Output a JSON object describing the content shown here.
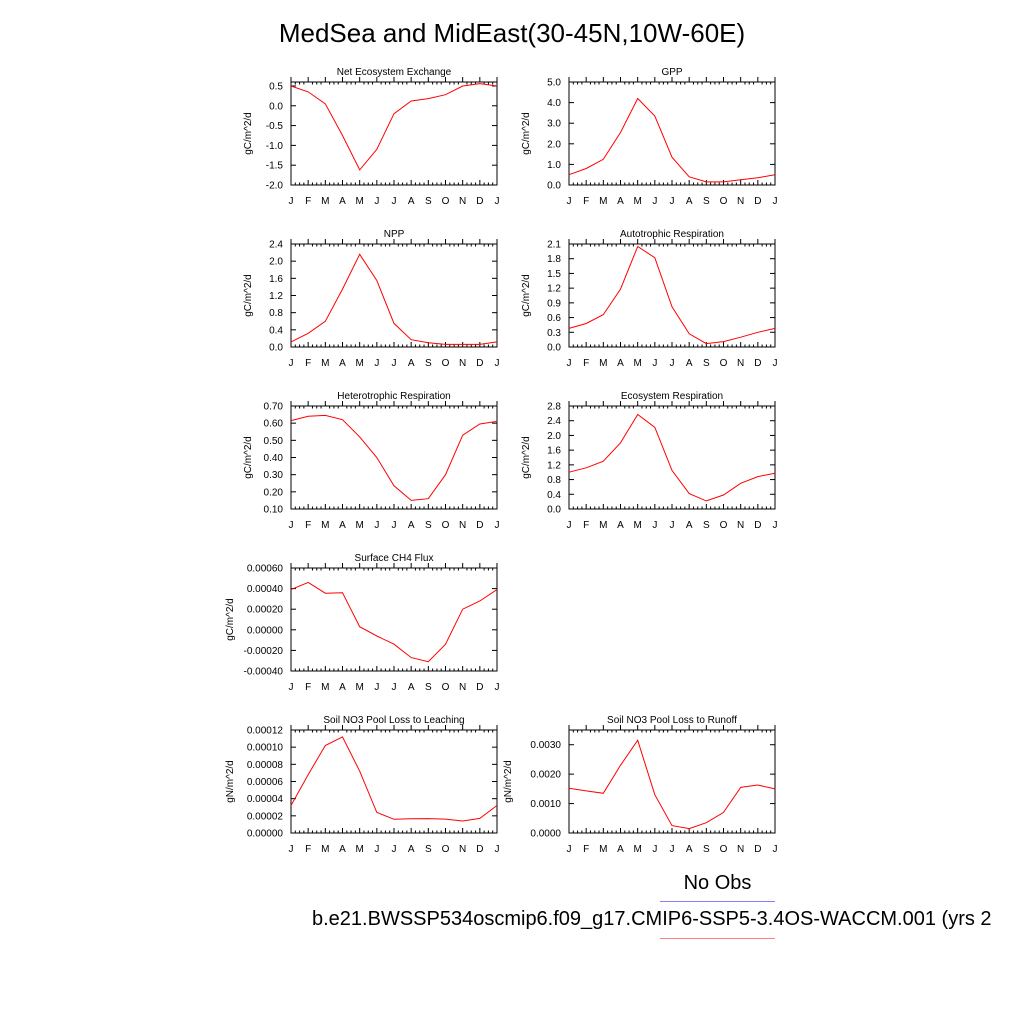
{
  "page": {
    "title": "MedSea and MidEast(30-45N,10W-60E)"
  },
  "legend": {
    "obs_label": "No Obs",
    "case_label": "b.e21.BWSSP534oscmip6.f09_g17.CMIP6-SSP5-3.4OS-WACCM.001 (yrs 2",
    "obs_color": "#8080ff",
    "model_color": "#ff8080"
  },
  "chart_data": [
    {
      "type": "line",
      "title": "Net Ecosystem Exchange",
      "ylabel": "gC/m^2/d",
      "categories": [
        "J",
        "F",
        "M",
        "A",
        "M",
        "J",
        "J",
        "A",
        "S",
        "O",
        "N",
        "D",
        "J"
      ],
      "ylim": [
        -2.0,
        0.6
      ],
      "yticks": [
        "0.5",
        "0.0",
        "-0.5",
        "-1.0",
        "-1.5",
        "-2.0"
      ],
      "ytick_values": [
        0.5,
        0.0,
        -0.5,
        -1.0,
        -1.5,
        -2.0
      ],
      "series": [
        {
          "color": "#ff0000",
          "values": [
            0.5,
            0.35,
            0.05,
            -0.75,
            -1.62,
            -1.1,
            -0.2,
            0.12,
            0.18,
            0.28,
            0.5,
            0.56,
            0.5
          ]
        }
      ]
    },
    {
      "type": "line",
      "title": "GPP",
      "ylabel": "gC/m^2/d",
      "categories": [
        "J",
        "F",
        "M",
        "A",
        "M",
        "J",
        "J",
        "A",
        "S",
        "O",
        "N",
        "D",
        "J"
      ],
      "ylim": [
        0.0,
        5.0
      ],
      "yticks": [
        "5.0",
        "4.0",
        "3.0",
        "2.0",
        "1.0",
        "0.0"
      ],
      "ytick_values": [
        5.0,
        4.0,
        3.0,
        2.0,
        1.0,
        0.0
      ],
      "series": [
        {
          "color": "#ff0000",
          "values": [
            0.5,
            0.8,
            1.25,
            2.55,
            4.2,
            3.35,
            1.35,
            0.4,
            0.15,
            0.15,
            0.25,
            0.35,
            0.5
          ]
        }
      ]
    },
    {
      "type": "line",
      "title": "NPP",
      "ylabel": "gC/m^2/d",
      "categories": [
        "J",
        "F",
        "M",
        "A",
        "M",
        "J",
        "J",
        "A",
        "S",
        "O",
        "N",
        "D",
        "J"
      ],
      "ylim": [
        0.0,
        2.4
      ],
      "yticks": [
        "2.4",
        "2.0",
        "1.6",
        "1.2",
        "0.8",
        "0.4",
        "0.0"
      ],
      "ytick_values": [
        2.4,
        2.0,
        1.6,
        1.2,
        0.8,
        0.4,
        0.0
      ],
      "series": [
        {
          "color": "#ff0000",
          "values": [
            0.12,
            0.32,
            0.6,
            1.35,
            2.16,
            1.55,
            0.55,
            0.17,
            0.1,
            0.06,
            0.06,
            0.06,
            0.12
          ]
        }
      ]
    },
    {
      "type": "line",
      "title": "Autotrophic Respiration",
      "ylabel": "gC/m^2/d",
      "categories": [
        "J",
        "F",
        "M",
        "A",
        "M",
        "J",
        "J",
        "A",
        "S",
        "O",
        "N",
        "D",
        "J"
      ],
      "ylim": [
        0.0,
        2.1
      ],
      "yticks": [
        "2.1",
        "1.8",
        "1.5",
        "1.2",
        "0.9",
        "0.6",
        "0.3",
        "0.0"
      ],
      "ytick_values": [
        2.1,
        1.8,
        1.5,
        1.2,
        0.9,
        0.6,
        0.3,
        0.0
      ],
      "series": [
        {
          "color": "#ff0000",
          "values": [
            0.38,
            0.48,
            0.66,
            1.18,
            2.05,
            1.82,
            0.82,
            0.27,
            0.07,
            0.11,
            0.2,
            0.3,
            0.38
          ]
        }
      ]
    },
    {
      "type": "line",
      "title": "Heterotrophic Respiration",
      "ylabel": "gC/m^2/d",
      "categories": [
        "J",
        "F",
        "M",
        "A",
        "M",
        "J",
        "J",
        "A",
        "S",
        "O",
        "N",
        "D",
        "J"
      ],
      "ylim": [
        0.1,
        0.7
      ],
      "yticks": [
        "0.70",
        "0.60",
        "0.50",
        "0.40",
        "0.30",
        "0.20",
        "0.10"
      ],
      "ytick_values": [
        0.7,
        0.6,
        0.5,
        0.4,
        0.3,
        0.2,
        0.1
      ],
      "series": [
        {
          "color": "#ff0000",
          "values": [
            0.615,
            0.64,
            0.645,
            0.62,
            0.52,
            0.4,
            0.235,
            0.15,
            0.16,
            0.3,
            0.53,
            0.595,
            0.61
          ]
        }
      ]
    },
    {
      "type": "line",
      "title": "Ecosystem Respiration",
      "ylabel": "gC/m^2/d",
      "categories": [
        "J",
        "F",
        "M",
        "A",
        "M",
        "J",
        "J",
        "A",
        "S",
        "O",
        "N",
        "D",
        "J"
      ],
      "ylim": [
        0.0,
        2.8
      ],
      "yticks": [
        "2.8",
        "2.4",
        "2.0",
        "1.6",
        "1.2",
        "0.8",
        "0.4",
        "0.0"
      ],
      "ytick_values": [
        2.8,
        2.4,
        2.0,
        1.6,
        1.2,
        0.8,
        0.4,
        0.0
      ],
      "series": [
        {
          "color": "#ff0000",
          "values": [
            1.0,
            1.12,
            1.3,
            1.8,
            2.57,
            2.22,
            1.05,
            0.42,
            0.22,
            0.38,
            0.7,
            0.88,
            0.97
          ]
        }
      ]
    },
    {
      "type": "line",
      "title": "Surface CH4 Flux",
      "ylabel": "gC/m^2/d",
      "categories": [
        "J",
        "F",
        "M",
        "A",
        "M",
        "J",
        "J",
        "A",
        "S",
        "O",
        "N",
        "D",
        "J"
      ],
      "ylim": [
        -0.0004,
        0.0006
      ],
      "yticks": [
        "0.00060",
        "0.00040",
        "0.00020",
        "0.00000",
        "-0.00020",
        "-0.00040"
      ],
      "ytick_values": [
        0.0006,
        0.0004,
        0.0002,
        0.0,
        -0.0002,
        -0.0004
      ],
      "series": [
        {
          "color": "#ff0000",
          "values": [
            0.00039,
            0.00046,
            0.000355,
            0.00036,
            3e-05,
            -6e-05,
            -0.00014,
            -0.00027,
            -0.00031,
            -0.00014,
            0.0002,
            0.00028,
            0.00039
          ]
        }
      ]
    },
    {
      "type": "line",
      "title": "Soil NO3 Pool Loss to Leaching",
      "ylabel": "gN/m^2/d",
      "categories": [
        "J",
        "F",
        "M",
        "A",
        "M",
        "J",
        "J",
        "A",
        "S",
        "O",
        "N",
        "D",
        "J"
      ],
      "ylim": [
        0.0,
        0.00012
      ],
      "yticks": [
        "0.00012",
        "0.00010",
        "0.00008",
        "0.00006",
        "0.00004",
        "0.00002",
        "0.00000"
      ],
      "ytick_values": [
        0.00012,
        0.0001,
        8e-05,
        6e-05,
        4e-05,
        2e-05,
        0.0
      ],
      "series": [
        {
          "color": "#ff0000",
          "values": [
            3.2e-05,
            6.8e-05,
            0.000102,
            0.000112,
            7.2e-05,
            2.4e-05,
            1.6e-05,
            1.65e-05,
            1.68e-05,
            1.62e-05,
            1.4e-05,
            1.7e-05,
            3.2e-05
          ]
        }
      ]
    },
    {
      "type": "line",
      "title": "Soil NO3 Pool Loss to Runoff",
      "ylabel": "gN/m^2/d",
      "categories": [
        "J",
        "F",
        "M",
        "A",
        "M",
        "J",
        "J",
        "A",
        "S",
        "O",
        "N",
        "D",
        "J"
      ],
      "ylim": [
        0.0,
        0.0035
      ],
      "yticks": [
        "0.0030",
        "0.0020",
        "0.0010",
        "0.0000"
      ],
      "ytick_values": [
        0.003,
        0.002,
        0.001,
        0.0
      ],
      "series": [
        {
          "color": "#ff0000",
          "values": [
            0.00152,
            0.00143,
            0.00135,
            0.0023,
            0.00315,
            0.0013,
            0.00025,
            0.00015,
            0.00035,
            0.0007,
            0.00155,
            0.00163,
            0.0015
          ]
        }
      ]
    }
  ]
}
